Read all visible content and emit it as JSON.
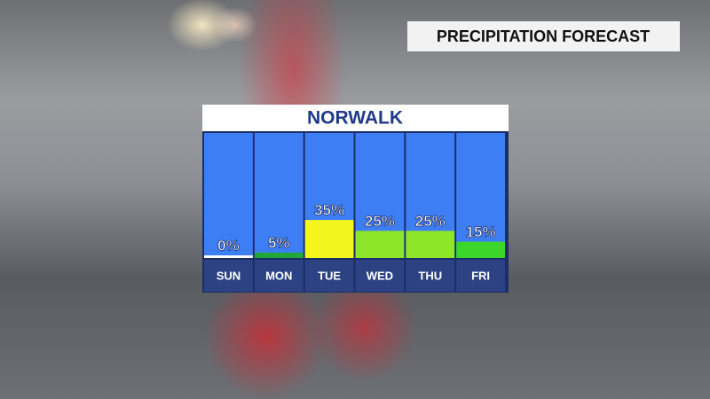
{
  "header": {
    "title": "PRECIPITATION FORECAST"
  },
  "chart_data": {
    "type": "bar",
    "title": "NORWALK",
    "categories": [
      "SUN",
      "MON",
      "TUE",
      "WED",
      "THU",
      "FRI"
    ],
    "values": [
      0,
      5,
      35,
      25,
      25,
      15
    ],
    "value_labels": [
      "0%",
      "5%",
      "35%",
      "25%",
      "25%",
      "15%"
    ],
    "colors": [
      "#ffffff",
      "#22a83a",
      "#f5f51e",
      "#8ee62a",
      "#8ee62a",
      "#3ad62a"
    ],
    "ylim": [
      0,
      115
    ]
  }
}
